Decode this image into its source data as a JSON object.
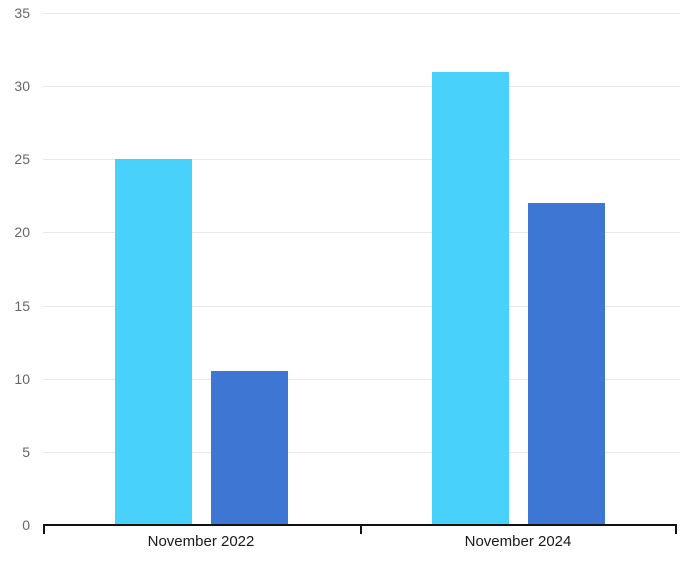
{
  "chart_data": {
    "type": "bar",
    "categories": [
      "November 2022",
      "November 2024"
    ],
    "series": [
      {
        "name": "cyan-series",
        "color": "#48d1fb",
        "values": [
          25,
          31
        ]
      },
      {
        "name": "blue-series",
        "color": "#3d77d3",
        "values": [
          10.5,
          22
        ]
      }
    ],
    "title": "",
    "xlabel": "",
    "ylabel": "",
    "ylim": [
      0,
      35
    ],
    "yticks": [
      0,
      5,
      10,
      15,
      20,
      25,
      30,
      35
    ],
    "grid": true,
    "legend": false
  },
  "colors": {
    "background": "#ffffff",
    "grid": "#e8e8e8",
    "axis": "#111111",
    "tick_label": "#666666",
    "category_label": "#1a1a1a"
  }
}
